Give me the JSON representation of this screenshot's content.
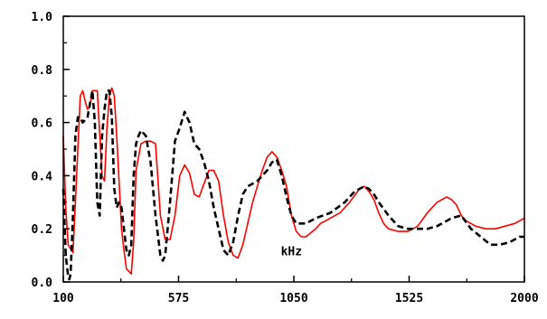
{
  "chart_data": {
    "type": "line",
    "title": "",
    "xlabel": "",
    "ylabel": "",
    "xlim": [
      100,
      2000
    ],
    "ylim": [
      0,
      1.0
    ],
    "x_ticks": [
      100,
      575,
      1050,
      1525,
      2000
    ],
    "x_tick_labels": [
      "100",
      "575",
      "1050",
      "1525",
      "2000"
    ],
    "y_ticks": [
      0,
      0.2,
      0.4,
      0.6,
      0.8,
      1.0
    ],
    "y_tick_labels": [
      "0.0",
      "0.2",
      "0.4",
      "0.6",
      "0.8",
      "1.0"
    ],
    "grid": false,
    "annotations": [
      {
        "text": "kHz",
        "x": 1040,
        "y": 0.1
      }
    ],
    "series": [
      {
        "color": "#ff0000",
        "style": "solid",
        "x": [
          100,
          110,
          120,
          140,
          150,
          170,
          180,
          190,
          200,
          210,
          220,
          240,
          260,
          270,
          280,
          290,
          300,
          310,
          320,
          340,
          350,
          360,
          380,
          390,
          400,
          420,
          440,
          460,
          480,
          500,
          520,
          540,
          560,
          580,
          600,
          620,
          640,
          660,
          680,
          700,
          720,
          740,
          760,
          780,
          800,
          820,
          840,
          860,
          880,
          900,
          920,
          940,
          960,
          980,
          1000,
          1020,
          1040,
          1060,
          1080,
          1100,
          1140,
          1160,
          1180,
          1200,
          1240,
          1280,
          1320,
          1340,
          1360,
          1380,
          1400,
          1420,
          1440,
          1480,
          1520,
          1560,
          1600,
          1640,
          1680,
          1700,
          1720,
          1740,
          1760,
          1800,
          1840,
          1880,
          1920,
          1960,
          2000
        ],
        "y": [
          0.55,
          0.28,
          0.14,
          0.11,
          0.3,
          0.7,
          0.72,
          0.68,
          0.65,
          0.66,
          0.72,
          0.72,
          0.4,
          0.38,
          0.58,
          0.7,
          0.73,
          0.7,
          0.55,
          0.2,
          0.12,
          0.05,
          0.03,
          0.15,
          0.42,
          0.52,
          0.53,
          0.53,
          0.52,
          0.25,
          0.16,
          0.16,
          0.25,
          0.4,
          0.44,
          0.41,
          0.33,
          0.32,
          0.37,
          0.42,
          0.42,
          0.38,
          0.25,
          0.15,
          0.1,
          0.09,
          0.14,
          0.22,
          0.3,
          0.36,
          0.42,
          0.47,
          0.49,
          0.47,
          0.42,
          0.36,
          0.25,
          0.19,
          0.17,
          0.17,
          0.2,
          0.22,
          0.23,
          0.24,
          0.26,
          0.3,
          0.35,
          0.36,
          0.34,
          0.31,
          0.26,
          0.22,
          0.2,
          0.19,
          0.19,
          0.21,
          0.26,
          0.3,
          0.32,
          0.31,
          0.29,
          0.25,
          0.23,
          0.21,
          0.2,
          0.2,
          0.21,
          0.22,
          0.24
        ]
      },
      {
        "color": "#000000",
        "style": "dashed",
        "x": [
          100,
          110,
          120,
          125,
          130,
          140,
          150,
          160,
          170,
          180,
          200,
          220,
          230,
          240,
          250,
          260,
          270,
          280,
          290,
          300,
          310,
          320,
          330,
          340,
          350,
          360,
          370,
          380,
          390,
          400,
          410,
          420,
          440,
          460,
          480,
          500,
          510,
          520,
          540,
          560,
          580,
          600,
          620,
          640,
          660,
          680,
          700,
          720,
          740,
          760,
          780,
          800,
          820,
          840,
          860,
          880,
          900,
          920,
          940,
          960,
          980,
          1000,
          1020,
          1040,
          1060,
          1080,
          1100,
          1140,
          1200,
          1260,
          1300,
          1340,
          1360,
          1380,
          1400,
          1440,
          1480,
          1520,
          1560,
          1600,
          1640,
          1700,
          1740,
          1780,
          1820,
          1860,
          1900,
          1940,
          1960,
          1980,
          2000
        ],
        "y": [
          0.35,
          0.1,
          0.02,
          0.01,
          0.03,
          0.25,
          0.55,
          0.62,
          0.62,
          0.6,
          0.62,
          0.72,
          0.6,
          0.3,
          0.25,
          0.55,
          0.65,
          0.72,
          0.72,
          0.62,
          0.35,
          0.28,
          0.3,
          0.28,
          0.2,
          0.12,
          0.1,
          0.14,
          0.4,
          0.52,
          0.55,
          0.57,
          0.55,
          0.45,
          0.25,
          0.1,
          0.08,
          0.1,
          0.3,
          0.53,
          0.58,
          0.64,
          0.6,
          0.52,
          0.5,
          0.45,
          0.38,
          0.28,
          0.2,
          0.12,
          0.1,
          0.15,
          0.25,
          0.33,
          0.36,
          0.37,
          0.38,
          0.4,
          0.42,
          0.45,
          0.46,
          0.4,
          0.32,
          0.25,
          0.22,
          0.22,
          0.22,
          0.24,
          0.26,
          0.3,
          0.34,
          0.36,
          0.35,
          0.33,
          0.3,
          0.25,
          0.21,
          0.2,
          0.2,
          0.2,
          0.21,
          0.24,
          0.25,
          0.2,
          0.17,
          0.14,
          0.14,
          0.15,
          0.16,
          0.17,
          0.17
        ]
      }
    ]
  }
}
